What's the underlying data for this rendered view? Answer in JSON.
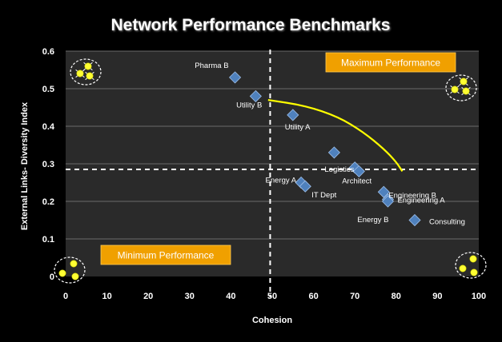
{
  "chart_data": {
    "type": "scatter",
    "title": "Network Performance Benchmarks",
    "xlabel": "Cohesion",
    "ylabel": "External Links- Diversity Index",
    "xlim": [
      0,
      100
    ],
    "ylim": [
      0,
      0.6
    ],
    "x_ticks": [
      "0",
      "10",
      "20",
      "30",
      "40",
      "50",
      "60",
      "70",
      "80",
      "90",
      "100"
    ],
    "y_ticks": [
      "0",
      "0.1",
      "0.2",
      "0.3",
      "0.4",
      "0.5",
      "0.6"
    ],
    "grid": "horizontal",
    "points": [
      {
        "label": "Pharma B",
        "x": 41,
        "y": 0.53
      },
      {
        "label": "Utility B",
        "x": 46,
        "y": 0.48
      },
      {
        "label": "Utility A",
        "x": 55,
        "y": 0.43
      },
      {
        "label": "Logistics",
        "x": 65,
        "y": 0.33
      },
      {
        "label": "Architect",
        "x": 70,
        "y": 0.29
      },
      {
        "label": "",
        "x": 71,
        "y": 0.28
      },
      {
        "label": "Energy A",
        "x": 57,
        "y": 0.25
      },
      {
        "label": "IT Dept",
        "x": 58,
        "y": 0.24
      },
      {
        "label": "Engineering B",
        "x": 77,
        "y": 0.225
      },
      {
        "label": "Engineering A",
        "x": 78,
        "y": 0.205
      },
      {
        "label": "Energy B",
        "x": 78,
        "y": 0.2
      },
      {
        "label": "Consulting",
        "x": 84.5,
        "y": 0.15
      }
    ],
    "reference_lines": {
      "x": 49.5,
      "y": 0.285
    },
    "frontier_curve": [
      [
        49,
        0.47
      ],
      [
        58,
        0.455
      ],
      [
        66,
        0.425
      ],
      [
        72,
        0.385
      ],
      [
        77,
        0.34
      ],
      [
        80,
        0.305
      ],
      [
        81.5,
        0.28
      ]
    ],
    "annotations": {
      "max_label": "Maximum Performance",
      "min_label": "Minimum Performance"
    },
    "colors": {
      "background": "#000000",
      "plot_area": "#2a2a2a",
      "marker": "#4f81bd",
      "frontier": "#ffff00",
      "annotation_box": "#f0a000",
      "text": "#ffffff"
    }
  }
}
